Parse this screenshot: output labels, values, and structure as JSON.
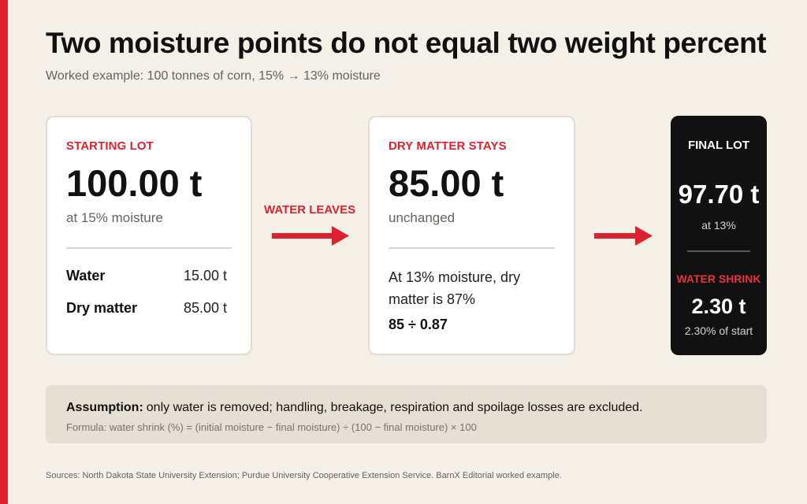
{
  "header": {
    "title": "Two moisture points do not equal two weight percent",
    "subtitle": "Worked example: 100 tonnes of corn, 15% → 13% moisture"
  },
  "starting_lot": {
    "label": "STARTING LOT",
    "value": "100.00 t",
    "sub": "at 15% moisture",
    "rows": [
      {
        "label": "Water",
        "value": "15.00 t"
      },
      {
        "label": "Dry matter",
        "value": "85.00 t"
      }
    ]
  },
  "flow": {
    "label": "WATER LEAVES"
  },
  "dry_matter": {
    "label": "DRY MATTER STAYS",
    "value": "85.00 t",
    "sub": "unchanged",
    "note": "At 13% moisture, dry matter is 87%",
    "calc": "85 ÷ 0.87"
  },
  "final_lot": {
    "label": "FINAL LOT",
    "value": "97.70 t",
    "sub": "at 13%",
    "shrink_label": "WATER SHRINK",
    "shrink_value": "2.30 t",
    "shrink_sub": "2.30% of start"
  },
  "assumption": {
    "lead": "Assumption:",
    "text": "only water is removed; handling, breakage, respiration and spoilage losses are excluded.",
    "formula": "Formula: water shrink (%) = (initial moisture − final moisture) ÷ (100 − final moisture) × 100"
  },
  "footer": {
    "sources": "Sources: North Dakota State University Extension; Purdue University Cooperative Extension Service. BarnX Editorial worked example."
  },
  "colors": {
    "accent": "#e0202f",
    "background": "#f4efe7",
    "final_card": "#111111"
  }
}
